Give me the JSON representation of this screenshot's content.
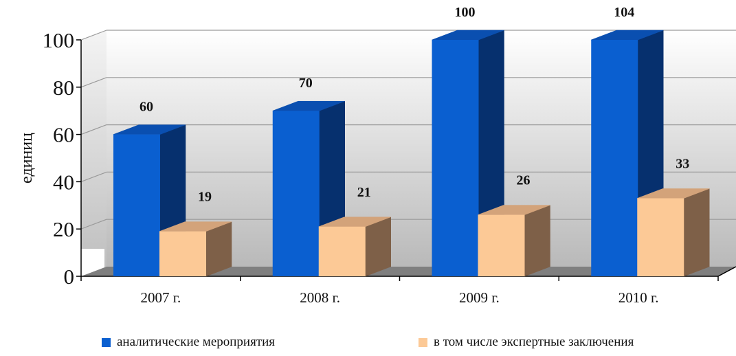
{
  "chart_data": {
    "type": "bar",
    "title": "",
    "xlabel": "",
    "ylabel": "единиц",
    "categories": [
      "2007 г.",
      "2008 г.",
      "2009 г.",
      "2010 г."
    ],
    "series": [
      {
        "name": "аналитические мероприятия",
        "values": [
          60,
          70,
          100,
          104
        ]
      },
      {
        "name": "в том числе экспертные заключения",
        "values": [
          19,
          21,
          26,
          33
        ]
      }
    ],
    "data_labels": [
      [
        "60",
        "70",
        "100",
        "104"
      ],
      [
        "19",
        "21",
        "26",
        "33"
      ]
    ],
    "ylim": [
      0,
      100
    ],
    "yticks": [
      "0",
      "20",
      "40",
      "60",
      "80",
      "100"
    ],
    "grid": true,
    "style": "3d-clustered-columns",
    "legend_position": "bottom",
    "colors": {
      "series_a_front": "#0A5FD0",
      "series_a_side": "#06306E",
      "series_a_top": "#0A4FB0",
      "series_b_front": "#FCC996",
      "series_b_side": "#7E6048",
      "series_b_top": "#D3A37A",
      "floor": "#7F7F7F",
      "gridline": "#9A9A9A"
    }
  }
}
